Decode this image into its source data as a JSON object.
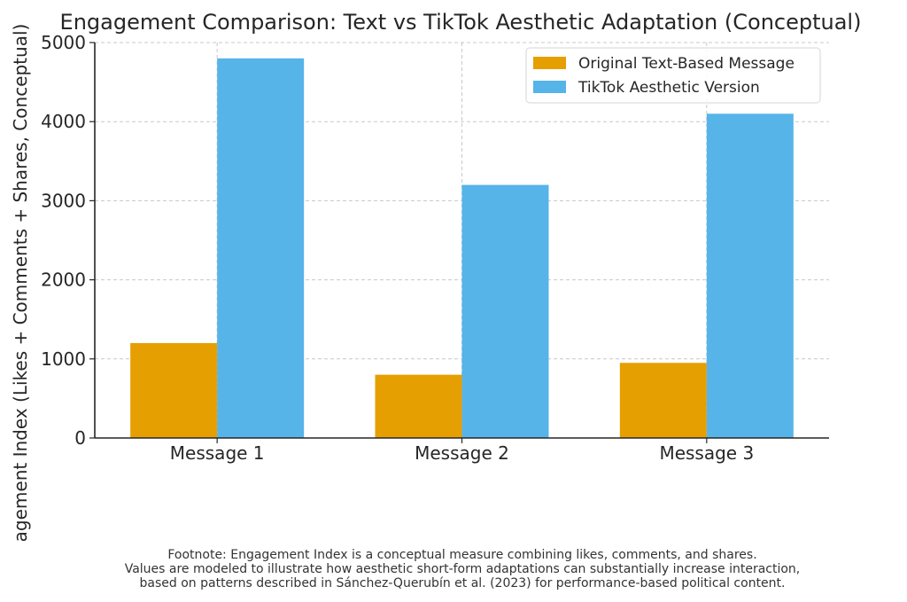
{
  "chart_data": {
    "type": "bar",
    "title": "Engagement Comparison: Text vs TikTok Aesthetic Adaptation (Conceptual)",
    "xlabel": "",
    "ylabel": "Engagement Index (Likes + Comments + Shares, Conceptual)",
    "categories": [
      "Message 1",
      "Message 2",
      "Message 3"
    ],
    "series": [
      {
        "name": "Original Text-Based Message",
        "values": [
          1200,
          800,
          950
        ],
        "color": "#E69F00"
      },
      {
        "name": "TikTok Aesthetic Version",
        "values": [
          4800,
          3200,
          4100
        ],
        "color": "#56B4E9"
      }
    ],
    "ylim": [
      0,
      5000
    ],
    "yticks": [
      0,
      1000,
      2000,
      3000,
      4000,
      5000
    ],
    "grid": true,
    "legend": "top-right"
  },
  "footnote": [
    "Footnote: Engagement Index is a conceptual measure combining likes, comments, and shares.",
    "Values are modeled to illustrate how aesthetic short-form adaptations can substantially increase interaction,",
    "based on patterns described in Sánchez-Querubín et al. (2023) for performance-based political content."
  ]
}
